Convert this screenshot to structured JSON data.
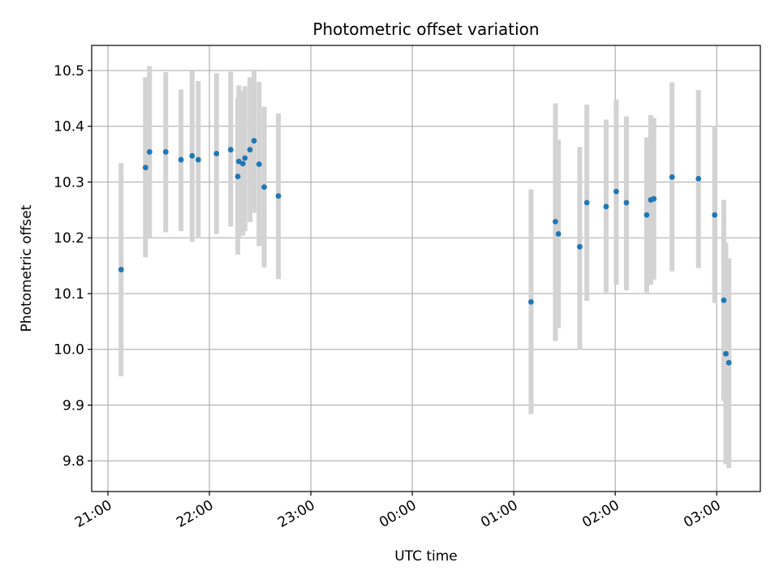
{
  "chart_data": {
    "type": "scatter",
    "title": "Photometric offset variation",
    "xlabel": "UTC time",
    "ylabel": "Photometric offset",
    "x_tick_labels": [
      "21:00",
      "22:00",
      "23:00",
      "00:00",
      "01:00",
      "02:00",
      "03:00"
    ],
    "y_tick_labels": [
      "9.8",
      "9.9",
      "10.0",
      "10.1",
      "10.2",
      "10.3",
      "10.4",
      "10.5"
    ],
    "x_axis_unit": "hours since 21:00 UTC",
    "xlim": [
      -0.16,
      6.43
    ],
    "ylim": [
      9.745,
      10.545
    ],
    "grid": true,
    "point_color": "#1f77b4",
    "errorbar_color": "#d3d3d3",
    "points": [
      {
        "x": 0.13,
        "y": 10.143,
        "lo": 9.952,
        "hi": 10.334
      },
      {
        "x": 0.37,
        "y": 10.326,
        "lo": 10.165,
        "hi": 10.488
      },
      {
        "x": 0.41,
        "y": 10.354,
        "lo": 10.2,
        "hi": 10.508
      },
      {
        "x": 0.57,
        "y": 10.354,
        "lo": 10.21,
        "hi": 10.497
      },
      {
        "x": 0.72,
        "y": 10.34,
        "lo": 10.212,
        "hi": 10.466
      },
      {
        "x": 0.83,
        "y": 10.347,
        "lo": 10.193,
        "hi": 10.5
      },
      {
        "x": 0.89,
        "y": 10.34,
        "lo": 10.199,
        "hi": 10.481
      },
      {
        "x": 1.07,
        "y": 10.351,
        "lo": 10.207,
        "hi": 10.495
      },
      {
        "x": 1.21,
        "y": 10.358,
        "lo": 10.22,
        "hi": 10.498
      },
      {
        "x": 1.28,
        "y": 10.31,
        "lo": 10.17,
        "hi": 10.451
      },
      {
        "x": 1.29,
        "y": 10.337,
        "lo": 10.2,
        "hi": 10.473
      },
      {
        "x": 1.33,
        "y": 10.333,
        "lo": 10.204,
        "hi": 10.463
      },
      {
        "x": 1.35,
        "y": 10.343,
        "lo": 10.212,
        "hi": 10.472
      },
      {
        "x": 1.4,
        "y": 10.358,
        "lo": 10.228,
        "hi": 10.488
      },
      {
        "x": 1.44,
        "y": 10.374,
        "lo": 10.245,
        "hi": 10.502
      },
      {
        "x": 1.49,
        "y": 10.332,
        "lo": 10.185,
        "hi": 10.48
      },
      {
        "x": 1.54,
        "y": 10.291,
        "lo": 10.147,
        "hi": 10.435
      },
      {
        "x": 1.68,
        "y": 10.275,
        "lo": 10.126,
        "hi": 10.423
      },
      {
        "x": 4.17,
        "y": 10.085,
        "lo": 9.884,
        "hi": 10.287
      },
      {
        "x": 4.41,
        "y": 10.229,
        "lo": 10.015,
        "hi": 10.441
      },
      {
        "x": 4.44,
        "y": 10.207,
        "lo": 10.038,
        "hi": 10.376
      },
      {
        "x": 4.65,
        "y": 10.184,
        "lo": 10.0,
        "hi": 10.363
      },
      {
        "x": 4.72,
        "y": 10.263,
        "lo": 10.087,
        "hi": 10.439
      },
      {
        "x": 4.91,
        "y": 10.256,
        "lo": 10.102,
        "hi": 10.412
      },
      {
        "x": 5.01,
        "y": 10.283,
        "lo": 10.116,
        "hi": 10.448
      },
      {
        "x": 5.11,
        "y": 10.263,
        "lo": 10.106,
        "hi": 10.418
      },
      {
        "x": 5.31,
        "y": 10.241,
        "lo": 10.102,
        "hi": 10.38
      },
      {
        "x": 5.35,
        "y": 10.268,
        "lo": 10.116,
        "hi": 10.42
      },
      {
        "x": 5.38,
        "y": 10.27,
        "lo": 10.125,
        "hi": 10.415
      },
      {
        "x": 5.56,
        "y": 10.309,
        "lo": 10.14,
        "hi": 10.479
      },
      {
        "x": 5.82,
        "y": 10.306,
        "lo": 10.146,
        "hi": 10.465
      },
      {
        "x": 5.98,
        "y": 10.241,
        "lo": 10.083,
        "hi": 10.401
      },
      {
        "x": 6.07,
        "y": 10.088,
        "lo": 9.908,
        "hi": 10.268
      },
      {
        "x": 6.09,
        "y": 9.992,
        "lo": 9.794,
        "hi": 10.191
      },
      {
        "x": 6.12,
        "y": 9.976,
        "lo": 9.787,
        "hi": 10.163
      }
    ]
  }
}
